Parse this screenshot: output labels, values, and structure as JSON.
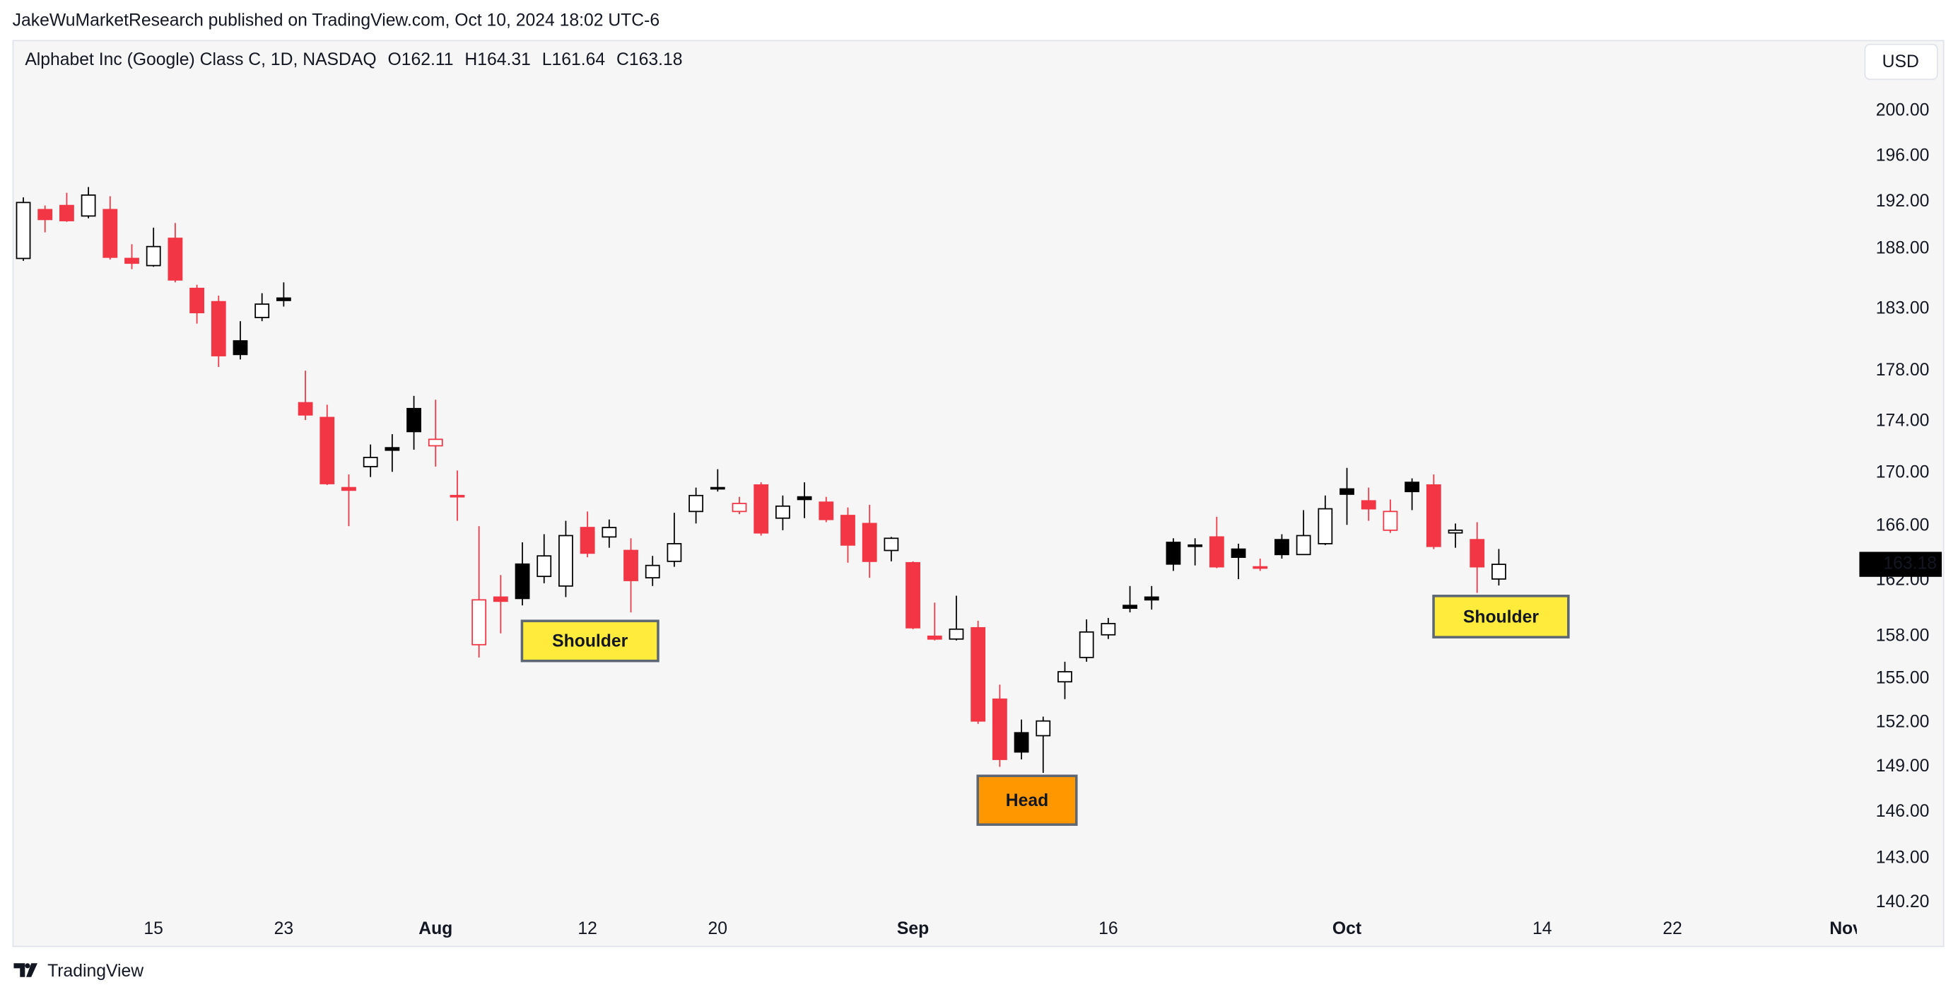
{
  "header": {
    "publisher_line": "JakeWuMarketResearch published on TradingView.com, Oct 10, 2024 18:02 UTC-6",
    "currency": "USD"
  },
  "footer": {
    "brand": "TradingView"
  },
  "chart_data": {
    "type": "candlestick",
    "title": "Alphabet Inc (Google) Class C, 1D, NASDAQ",
    "ohlc_prefixes": [
      "O",
      "H",
      "L",
      "C"
    ],
    "categories": [
      null,
      null,
      null,
      null,
      null,
      null,
      "15",
      null,
      null,
      null,
      null,
      null,
      "23",
      null,
      null,
      null,
      null,
      null,
      null,
      "Aug",
      null,
      null,
      null,
      null,
      null,
      null,
      "12",
      null,
      null,
      null,
      null,
      null,
      "20",
      null,
      null,
      null,
      null,
      null,
      null,
      null,
      null,
      "Sep",
      null,
      null,
      null,
      null,
      null,
      null,
      null,
      null,
      "16",
      null,
      null,
      null,
      null,
      null,
      null,
      null,
      null,
      null,
      null,
      "Oct",
      null,
      null,
      null,
      null,
      null,
      null,
      null,
      null,
      "14",
      null,
      null,
      null,
      null,
      null,
      "22",
      null,
      null,
      null,
      null,
      null,
      null,
      null,
      "Nov"
    ],
    "open": [
      187.2,
      191.35,
      191.7,
      190.8,
      191.35,
      187.2,
      186.6,
      188.9,
      184.7,
      183.6,
      180.4,
      182.3,
      183.9,
      175.46,
      174.3,
      168.9,
      170.5,
      171.95,
      175.0,
      172.1,
      168.3,
      157.4,
      160.8,
      163.2,
      162.3,
      161.6,
      165.9,
      165.2,
      164.2,
      162.2,
      163.4,
      167.1,
      168.9,
      167.1,
      169.1,
      166.6,
      168.2,
      167.8,
      166.8,
      166.2,
      164.2,
      163.3,
      158.0,
      157.8,
      158.6,
      153.6,
      151.3,
      151.1,
      154.8,
      156.5,
      158.1,
      160.2,
      160.8,
      164.8,
      164.6,
      165.2,
      164.3,
      163.0,
      165.0,
      163.9,
      164.7,
      168.8,
      167.9,
      165.7,
      169.3,
      169.1,
      165.5,
      165.0,
      162.11,
      null,
      null,
      null,
      null,
      null,
      null,
      null,
      null,
      null,
      null,
      null,
      null,
      null,
      null,
      null,
      null
    ],
    "high": [
      192.4,
      191.7,
      192.8,
      193.3,
      192.5,
      188.4,
      189.8,
      190.2,
      185.0,
      184.1,
      182.0,
      184.3,
      185.2,
      178.0,
      175.3,
      169.9,
      172.2,
      173.0,
      176.0,
      175.7,
      170.2,
      166.0,
      162.4,
      164.8,
      165.4,
      166.4,
      167.1,
      166.5,
      165.1,
      163.8,
      167.0,
      168.9,
      170.3,
      168.2,
      169.3,
      168.3,
      169.3,
      168.2,
      167.4,
      167.6,
      165.2,
      163.4,
      160.4,
      160.9,
      159.1,
      154.6,
      152.2,
      152.4,
      156.2,
      159.2,
      159.3,
      161.6,
      161.6,
      165.1,
      165.1,
      166.7,
      164.7,
      163.6,
      165.4,
      167.2,
      168.3,
      170.4,
      168.9,
      168.0,
      169.6,
      169.9,
      166.2,
      166.3,
      164.31,
      null,
      null,
      null,
      null,
      null,
      null,
      null,
      null,
      null,
      null,
      null,
      null,
      null,
      null,
      null,
      null
    ],
    "low": [
      187.0,
      189.4,
      190.3,
      190.6,
      187.1,
      186.3,
      186.5,
      185.2,
      181.8,
      178.3,
      178.9,
      182.0,
      183.2,
      174.1,
      169.1,
      166.0,
      169.7,
      170.1,
      171.8,
      170.5,
      166.4,
      156.5,
      158.2,
      160.2,
      161.8,
      160.8,
      163.7,
      164.4,
      159.7,
      161.6,
      163.0,
      166.2,
      168.6,
      166.9,
      165.3,
      165.7,
      166.6,
      166.3,
      163.3,
      162.2,
      163.4,
      158.5,
      157.7,
      157.7,
      151.9,
      149.0,
      149.5,
      148.6,
      153.6,
      156.2,
      157.8,
      159.7,
      159.9,
      162.7,
      163.1,
      162.9,
      162.1,
      162.7,
      163.6,
      163.9,
      164.6,
      166.1,
      166.4,
      165.5,
      167.2,
      164.3,
      164.4,
      161.1,
      161.64,
      null,
      null,
      null,
      null,
      null,
      null,
      null,
      null,
      null,
      null,
      null,
      null,
      null,
      null,
      null,
      null
    ],
    "close": [
      191.96,
      190.5,
      190.4,
      192.6,
      187.3,
      186.8,
      188.2,
      185.4,
      182.7,
      179.2,
      179.3,
      183.4,
      183.7,
      174.5,
      169.2,
      168.7,
      171.2,
      171.76,
      173.2,
      172.6,
      168.2,
      160.6,
      160.5,
      160.7,
      163.8,
      165.3,
      164.0,
      165.9,
      162.0,
      163.1,
      164.7,
      168.3,
      168.8,
      167.7,
      165.5,
      167.5,
      168.0,
      166.5,
      164.6,
      163.4,
      165.1,
      158.6,
      157.8,
      158.5,
      152.1,
      149.5,
      150.0,
      152.1,
      155.5,
      158.3,
      158.9,
      160.0,
      160.6,
      163.2,
      164.5,
      163.0,
      163.7,
      162.9,
      163.9,
      165.3,
      167.3,
      168.4,
      167.3,
      167.1,
      168.6,
      164.5,
      165.7,
      163.0,
      163.18,
      null,
      null,
      null,
      null,
      null,
      null,
      null,
      null,
      null,
      null,
      null,
      null,
      null,
      null,
      null,
      null
    ],
    "ylim": [
      139.6,
      202.7
    ],
    "yticks": [
      {
        "value": 200,
        "label": "200.00"
      },
      {
        "value": 196,
        "label": "196.00"
      },
      {
        "value": 192,
        "label": "192.00"
      },
      {
        "value": 188,
        "label": "188.00"
      },
      {
        "value": 183,
        "label": "183.00"
      },
      {
        "value": 178,
        "label": "178.00"
      },
      {
        "value": 174,
        "label": "174.00"
      },
      {
        "value": 170,
        "label": "170.00"
      },
      {
        "value": 166,
        "label": "166.00"
      },
      {
        "value": 162,
        "label": "162.00"
      },
      {
        "value": 158,
        "label": "158.00"
      },
      {
        "value": 155,
        "label": "155.00"
      },
      {
        "value": 152,
        "label": "152.00"
      },
      {
        "value": 149,
        "label": "149.00"
      },
      {
        "value": 146,
        "label": "146.00"
      },
      {
        "value": 143,
        "label": "143.00"
      },
      {
        "value": 140.2,
        "label": "140.20"
      }
    ],
    "log_scale": true,
    "grid": false,
    "up_color": "#000000",
    "down_color": "#f23645",
    "hollow_fill": "#ffffff",
    "annotations": [
      {
        "text": "Shoulder",
        "color": "#ffeb3b",
        "text_color": "#000000"
      },
      {
        "text": "Head",
        "color": "#ff9800",
        "text_color": "#ffffff"
      },
      {
        "text": "Shoulder",
        "color": "#ffeb3b",
        "text_color": "#000000"
      }
    ]
  }
}
